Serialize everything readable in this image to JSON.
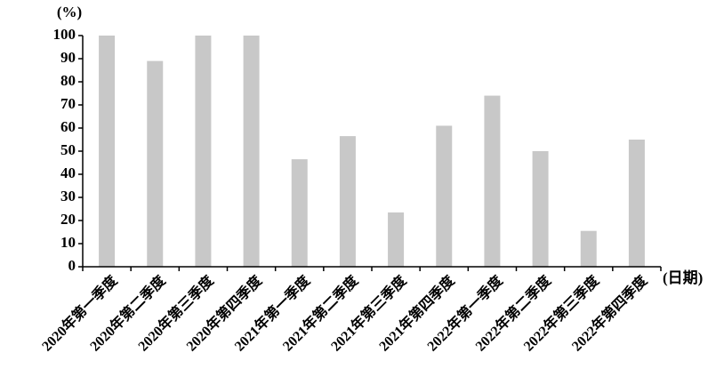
{
  "chart_data": {
    "type": "bar",
    "y_label": "(%)",
    "x_label": "(日期)",
    "categories": [
      "2020年第一季度",
      "2020年第二季度",
      "2020年第三季度",
      "2020年第四季度",
      "2021年第一季度",
      "2021年第二季度",
      "2021年第三季度",
      "2021年第四季度",
      "2022年第一季度",
      "2022年第二季度",
      "2022年第三季度",
      "2022年第四季度"
    ],
    "values": [
      100,
      89,
      100,
      100,
      46.5,
      56.5,
      23.5,
      61,
      74,
      50,
      15.5,
      55
    ],
    "color": "#c8c8c8",
    "ylim": [
      0,
      100
    ],
    "yticks": [
      0,
      10,
      20,
      30,
      40,
      50,
      60,
      70,
      80,
      90,
      100
    ]
  }
}
